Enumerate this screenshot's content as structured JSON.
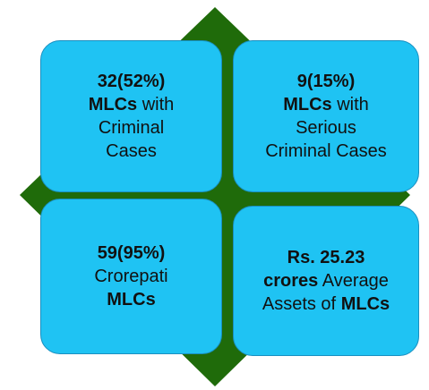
{
  "boxes": [
    {
      "parts": [
        "32(52%)",
        "MLCs",
        "with",
        "Criminal",
        "Cases"
      ]
    },
    {
      "parts": [
        "9(15%)",
        "MLCs",
        "with",
        "Serious",
        "Criminal Cases"
      ]
    },
    {
      "parts": [
        "59(95%)",
        "Crorepati",
        "MLCs"
      ]
    },
    {
      "parts": [
        "Rs. 25.23",
        "crores",
        "Average",
        "Assets of",
        "MLCs"
      ]
    }
  ]
}
